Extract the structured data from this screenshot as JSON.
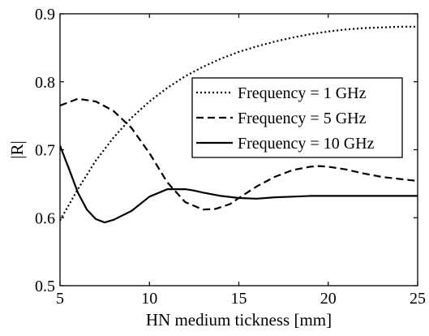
{
  "chart_data": {
    "type": "line",
    "xlabel": "HN medium tickness [mm]",
    "ylabel": "|R|",
    "xlim": [
      5,
      25
    ],
    "ylim": [
      0.5,
      0.9
    ],
    "xticks": [
      5,
      10,
      15,
      20,
      25
    ],
    "xtick_labels": [
      "5",
      "10",
      "15",
      "20",
      "25"
    ],
    "yticks": [
      0.5,
      0.6,
      0.7,
      0.8,
      0.9
    ],
    "ytick_labels": [
      "0.5",
      "0.6",
      "0.7",
      "0.8",
      "0.9"
    ],
    "grid": false,
    "legend_position": "center-right",
    "series": [
      {
        "name": "Frequency = 1 GHz",
        "style": "dotted",
        "color": "#000000",
        "x": [
          5,
          6,
          7,
          8,
          9,
          10,
          11,
          12,
          13,
          14,
          15,
          16,
          17,
          18,
          19,
          20,
          21,
          22,
          23,
          24,
          25
        ],
        "y": [
          0.596,
          0.642,
          0.684,
          0.718,
          0.747,
          0.771,
          0.791,
          0.808,
          0.822,
          0.834,
          0.844,
          0.852,
          0.859,
          0.865,
          0.87,
          0.874,
          0.877,
          0.879,
          0.88,
          0.881,
          0.881
        ]
      },
      {
        "name": "Frequency = 5 GHz",
        "style": "dashed",
        "color": "#000000",
        "x": [
          5,
          6,
          7,
          8,
          9,
          10,
          11,
          12,
          13,
          13.7,
          14.5,
          15,
          16,
          17,
          18,
          19,
          19.5,
          20,
          21,
          22,
          23,
          24,
          25
        ],
        "y": [
          0.765,
          0.775,
          0.771,
          0.757,
          0.732,
          0.695,
          0.652,
          0.623,
          0.612,
          0.613,
          0.62,
          0.629,
          0.646,
          0.66,
          0.67,
          0.675,
          0.676,
          0.675,
          0.671,
          0.665,
          0.66,
          0.657,
          0.654
        ]
      },
      {
        "name": "Frequency = 10 GHz",
        "style": "solid",
        "color": "#000000",
        "x": [
          5,
          5.5,
          6,
          6.5,
          7,
          7.5,
          8,
          9,
          10,
          11,
          12,
          12.5,
          13,
          14,
          15,
          16,
          17,
          18,
          19,
          20,
          21,
          22,
          23,
          24,
          25
        ],
        "y": [
          0.706,
          0.672,
          0.637,
          0.612,
          0.598,
          0.593,
          0.597,
          0.61,
          0.631,
          0.642,
          0.642,
          0.64,
          0.637,
          0.632,
          0.629,
          0.628,
          0.63,
          0.631,
          0.632,
          0.632,
          0.632,
          0.632,
          0.632,
          0.632,
          0.632
        ]
      }
    ]
  }
}
